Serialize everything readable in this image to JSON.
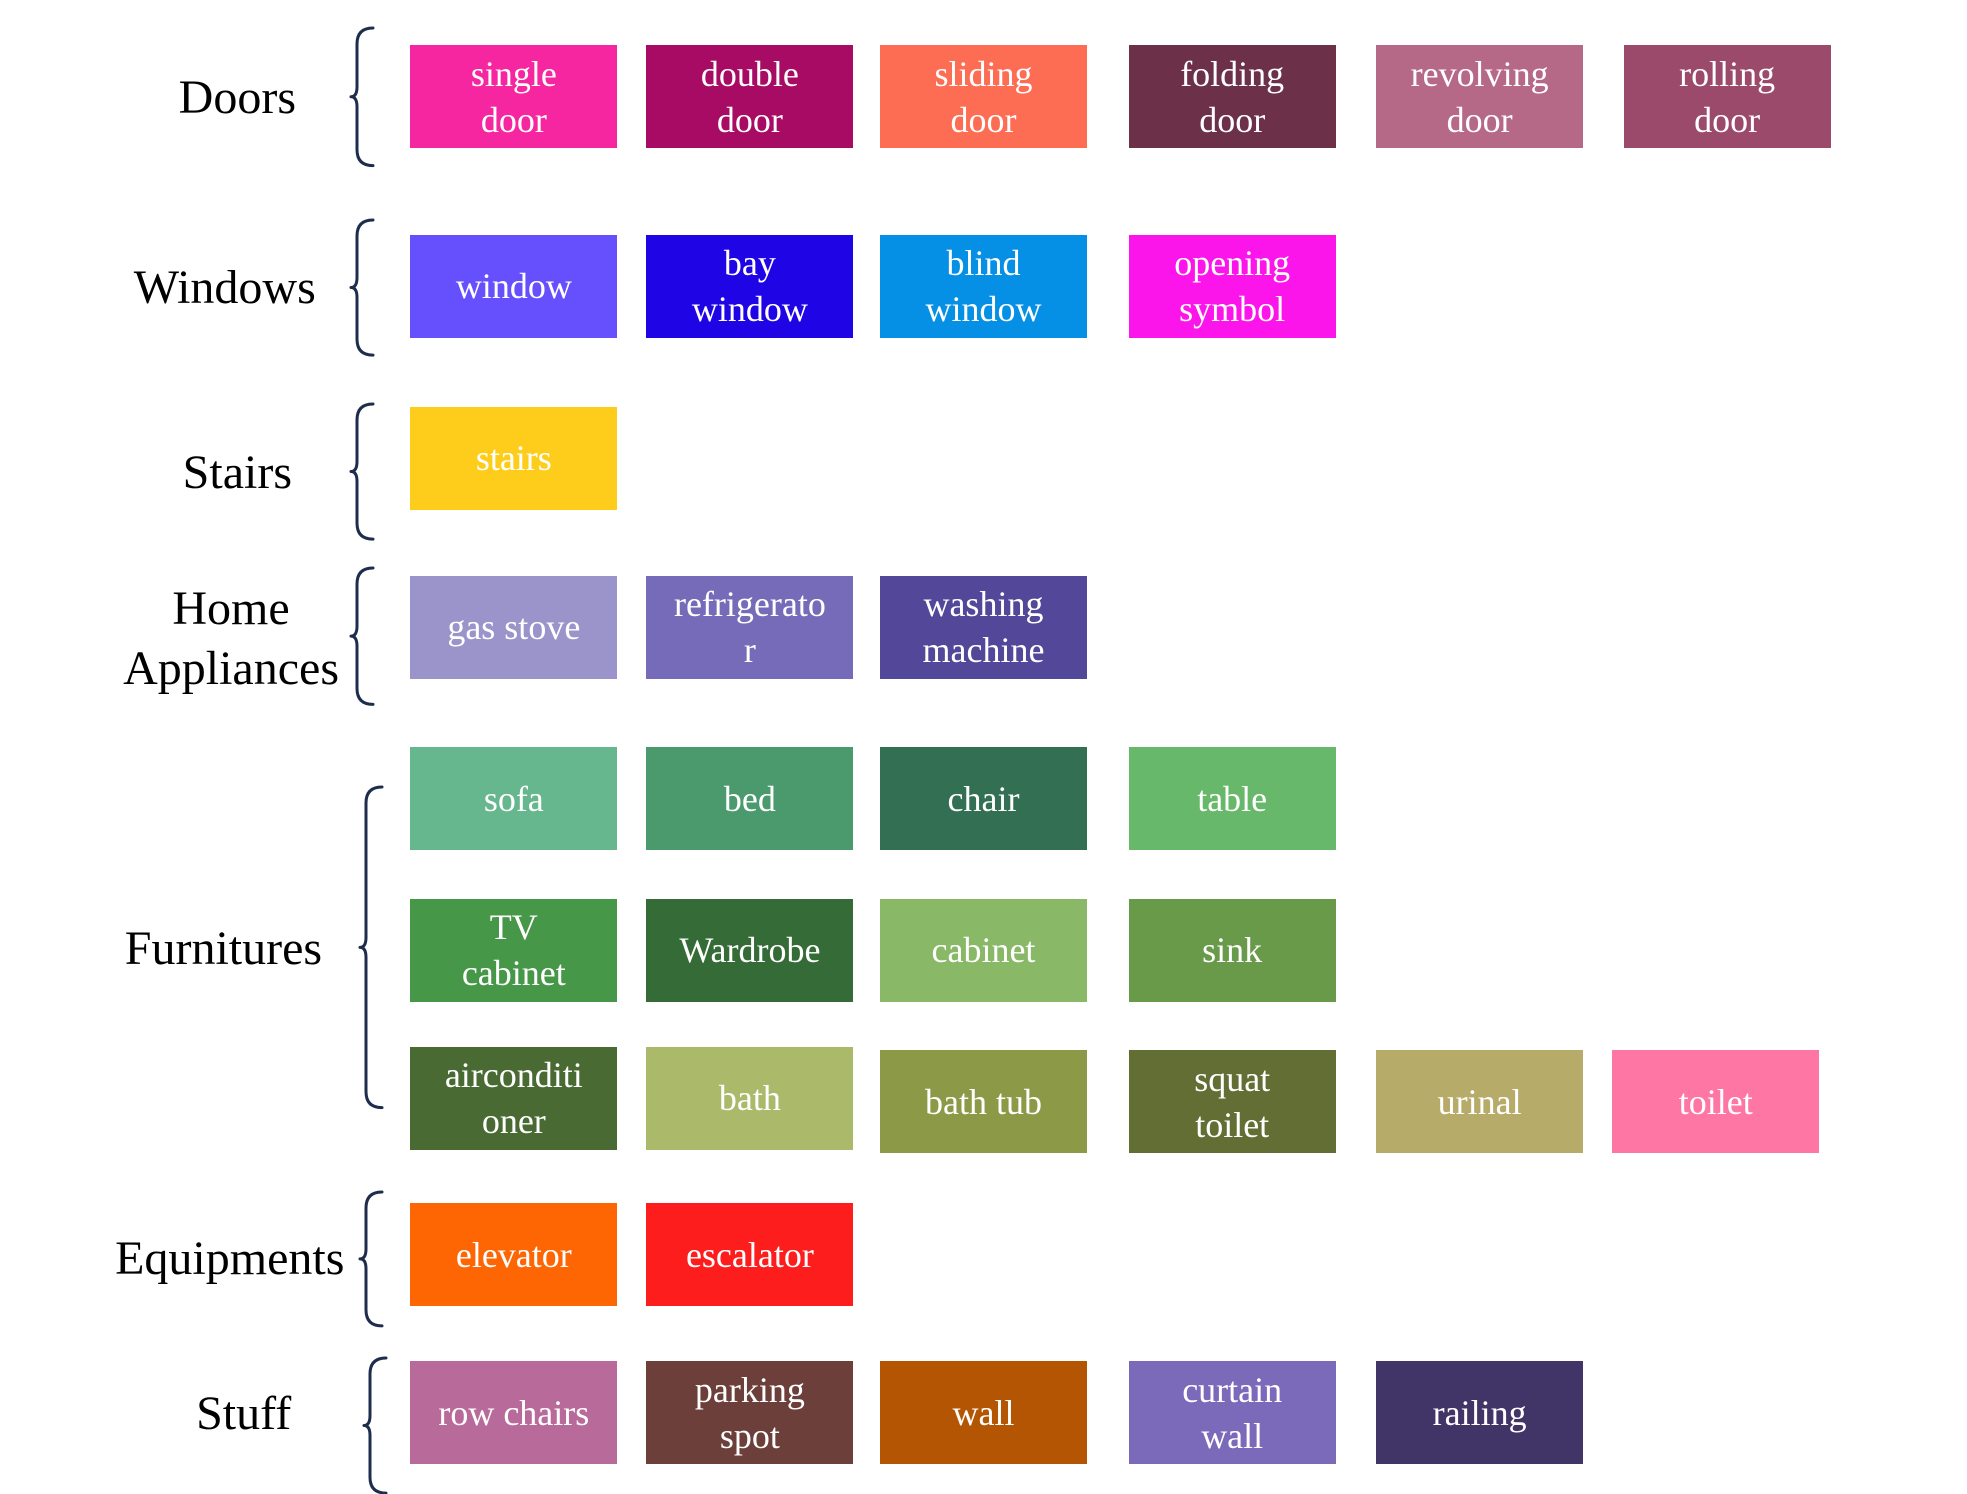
{
  "categories": [
    {
      "name": "Doors",
      "items": [
        {
          "label": "single\ndoor",
          "color": "#f626a1"
        },
        {
          "label": "double\ndoor",
          "color": "#a80b63"
        },
        {
          "label": "sliding\ndoor",
          "color": "#fd6d54"
        },
        {
          "label": "folding\ndoor",
          "color": "#6c3049"
        },
        {
          "label": "revolving\ndoor",
          "color": "#b66986"
        },
        {
          "label": "rolling\ndoor",
          "color": "#9b4a6b"
        }
      ]
    },
    {
      "name": "Windows",
      "items": [
        {
          "label": "window",
          "color": "#6650fe"
        },
        {
          "label": "bay\nwindow",
          "color": "#1f04e6"
        },
        {
          "label": "blind\nwindow",
          "color": "#0690e5"
        },
        {
          "label": "opening\nsymbol",
          "color": "#fb15ea"
        }
      ]
    },
    {
      "name": "Stairs",
      "items": [
        {
          "label": "stairs",
          "color": "#fecd1c"
        }
      ]
    },
    {
      "name": "Home\nAppliances",
      "items": [
        {
          "label": "gas stove",
          "color": "#9a94ca"
        },
        {
          "label": "refrigerato\nr",
          "color": "#756bb8"
        },
        {
          "label": "washing\nmachine",
          "color": "#53479a"
        }
      ]
    },
    {
      "name": "Furnitures",
      "items": [
        {
          "label": "sofa",
          "color": "#67b78e"
        },
        {
          "label": "bed",
          "color": "#4a9a6e"
        },
        {
          "label": "chair",
          "color": "#336f52"
        },
        {
          "label": "table",
          "color": "#67b86b"
        },
        {
          "label": "TV\ncabinet",
          "color": "#469747"
        },
        {
          "label": "Wardrobe",
          "color": "#356b37"
        },
        {
          "label": "cabinet",
          "color": "#89b867"
        },
        {
          "label": "sink",
          "color": "#689a4a"
        },
        {
          "label": "airconditi\noner",
          "color": "#496b33"
        },
        {
          "label": "bath",
          "color": "#abb96b"
        },
        {
          "label": "bath tub",
          "color": "#8c9a47"
        },
        {
          "label": "squat\ntoilet",
          "color": "#626e33"
        },
        {
          "label": "urinal",
          "color": "#b6ab69"
        },
        {
          "label": "toilet",
          "color": "#fe76a4"
        }
      ]
    },
    {
      "name": "Equipments",
      "items": [
        {
          "label": "elevator",
          "color": "#fe6503"
        },
        {
          "label": "escalator",
          "color": "#fe1d1d"
        }
      ]
    },
    {
      "name": "Stuff",
      "items": [
        {
          "label": "row chairs",
          "color": "#b86b9b"
        },
        {
          "label": "parking\nspot",
          "color": "#6c3f3b"
        },
        {
          "label": "wall",
          "color": "#b35503"
        },
        {
          "label": "curtain\nwall",
          "color": "#7b69ba"
        },
        {
          "label": "railing",
          "color": "#413467"
        }
      ]
    }
  ]
}
